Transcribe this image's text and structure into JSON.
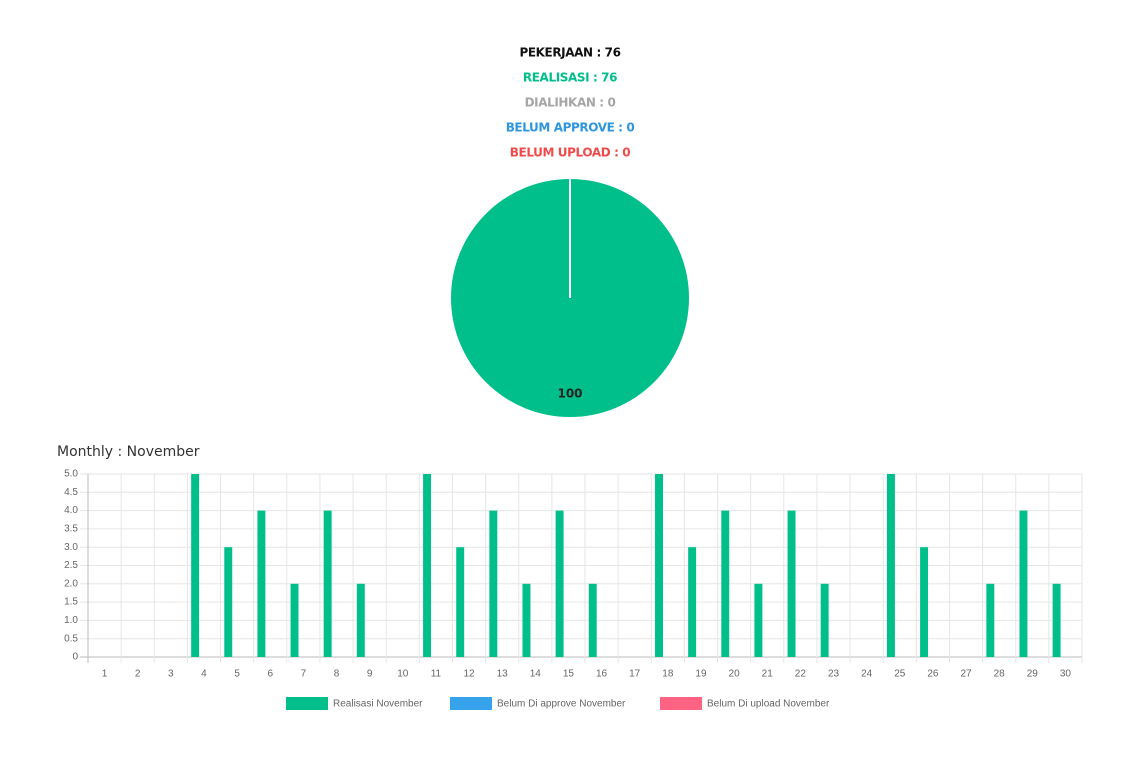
{
  "stats": [
    {
      "text": "PEKERJAAN : 76",
      "color": "#111111"
    },
    {
      "text": "REALISASI : 76",
      "color": "#00bf8a"
    },
    {
      "text": "DIALIHKAN : 0",
      "color": "#a6a6a6"
    },
    {
      "text": "BELUM APPROVE : 0",
      "color": "#2f95dc"
    },
    {
      "text": "BELUM UPLOAD : 0",
      "color": "#f04b4b"
    }
  ],
  "chart_data": [
    {
      "type": "pie",
      "values": [
        100
      ],
      "colors": [
        "#00bf8a"
      ]
    },
    {
      "type": "bar",
      "title": "Monthly : November",
      "categories": [
        "1",
        "2",
        "3",
        "4",
        "5",
        "6",
        "7",
        "8",
        "9",
        "10",
        "11",
        "12",
        "13",
        "14",
        "15",
        "16",
        "17",
        "18",
        "19",
        "20",
        "21",
        "22",
        "23",
        "24",
        "25",
        "26",
        "27",
        "28",
        "29",
        "30"
      ],
      "series": [
        {
          "name": "Realisasi November",
          "color": "#00bf8a",
          "values": [
            0,
            0,
            0,
            5,
            3,
            4,
            2,
            4,
            2,
            0,
            5,
            3,
            4,
            2,
            4,
            2,
            0,
            5,
            3,
            4,
            2,
            4,
            2,
            0,
            5,
            3,
            0,
            2,
            4,
            2
          ]
        },
        {
          "name": "Belum Di approve November",
          "color": "#36a2eb",
          "values": [
            0,
            0,
            0,
            0,
            0,
            0,
            0,
            0,
            0,
            0,
            0,
            0,
            0,
            0,
            0,
            0,
            0,
            0,
            0,
            0,
            0,
            0,
            0,
            0,
            0,
            0,
            0,
            0,
            0,
            0
          ]
        },
        {
          "name": "Belum Di upload November",
          "color": "#ff6384",
          "values": [
            0,
            0,
            0,
            0,
            0,
            0,
            0,
            0,
            0,
            0,
            0,
            0,
            0,
            0,
            0,
            0,
            0,
            0,
            0,
            0,
            0,
            0,
            0,
            0,
            0,
            0,
            0,
            0,
            0,
            0
          ]
        }
      ],
      "ylim": [
        0,
        5
      ],
      "yticks": [
        0,
        0.5,
        {
          "value": 1,
          "label": "1.0"
        },
        1.5,
        {
          "value": 2,
          "label": "2.0"
        },
        2.5,
        {
          "value": 3,
          "label": "3.0"
        },
        3.5,
        {
          "value": 4,
          "label": "4.0"
        },
        4.5,
        {
          "value": 5,
          "label": "5.0"
        }
      ],
      "grid": true,
      "legend": "bottom"
    }
  ]
}
